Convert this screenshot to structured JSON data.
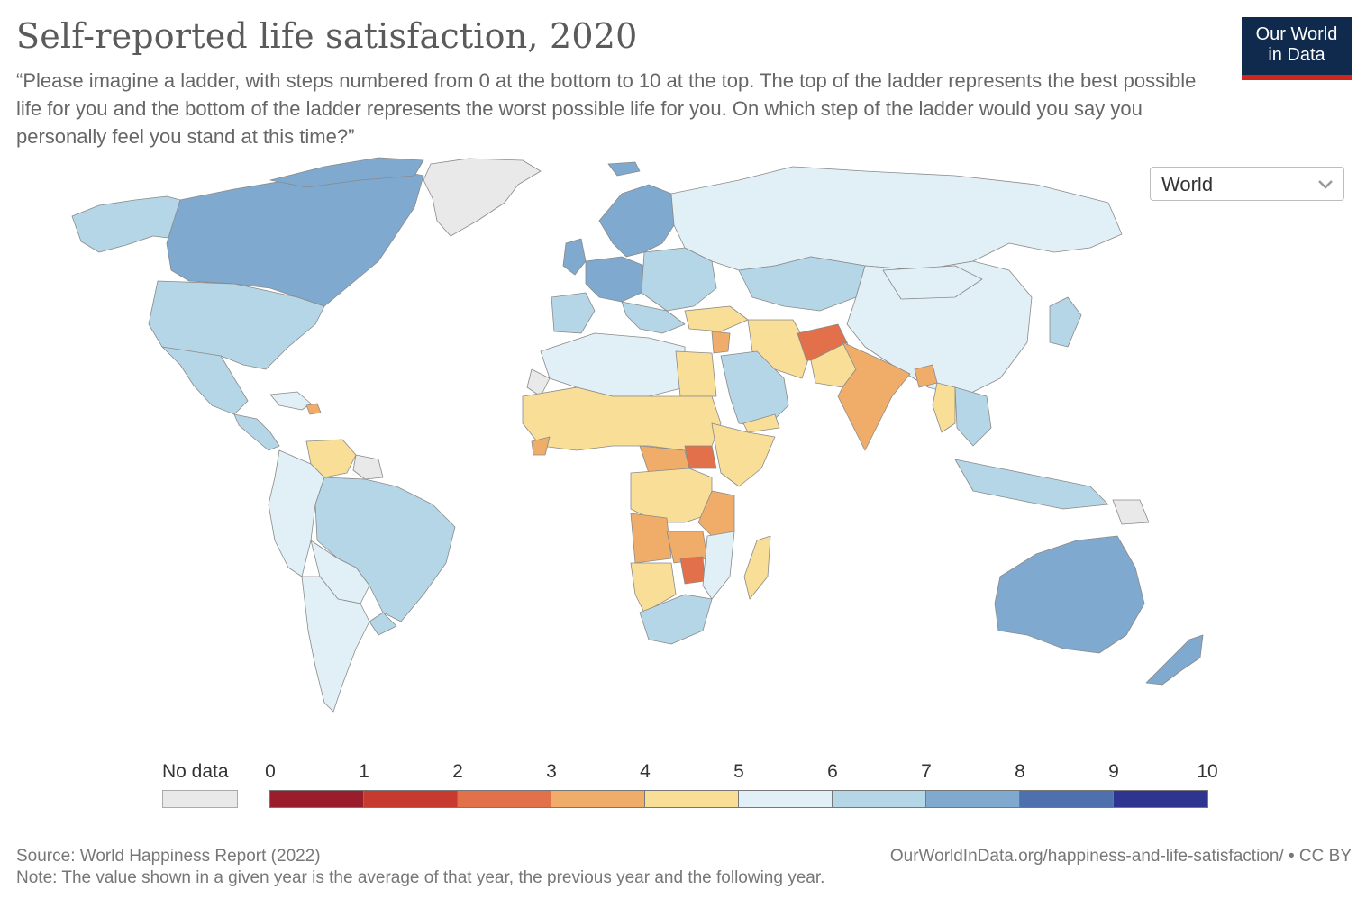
{
  "header": {
    "title": "Self-reported life satisfaction, 2020",
    "subtitle": "“Please imagine a ladder, with steps numbered from 0 at the bottom to 10 at the top. The top of the ladder represents the best possible life for you and the bottom of the ladder represents the worst possible life for you. On which step of the ladder would you say you personally feel you stand at this time?”",
    "logo_line1": "Our World",
    "logo_line2": "in Data"
  },
  "region_select": {
    "value": "World"
  },
  "legend": {
    "no_data_label": "No data",
    "ticks": [
      "0",
      "1",
      "2",
      "3",
      "4",
      "5",
      "6",
      "7",
      "8",
      "9",
      "10"
    ],
    "colors": [
      "#9a1d2b",
      "#c73a30",
      "#e2704b",
      "#f0ad6a",
      "#f8de96",
      "#e1f0f6",
      "#b5d6e7",
      "#7fa9cf",
      "#4e70ac",
      "#2d3590"
    ],
    "no_data_color": "#e9e9e9"
  },
  "footer": {
    "source": "Source: World Happiness Report (2022)",
    "note": "Note: The value shown in a given year is the average of that year, the previous year and the following year.",
    "url": "OurWorldInData.org/happiness-and-life-satisfaction/ • CC BY"
  }
}
